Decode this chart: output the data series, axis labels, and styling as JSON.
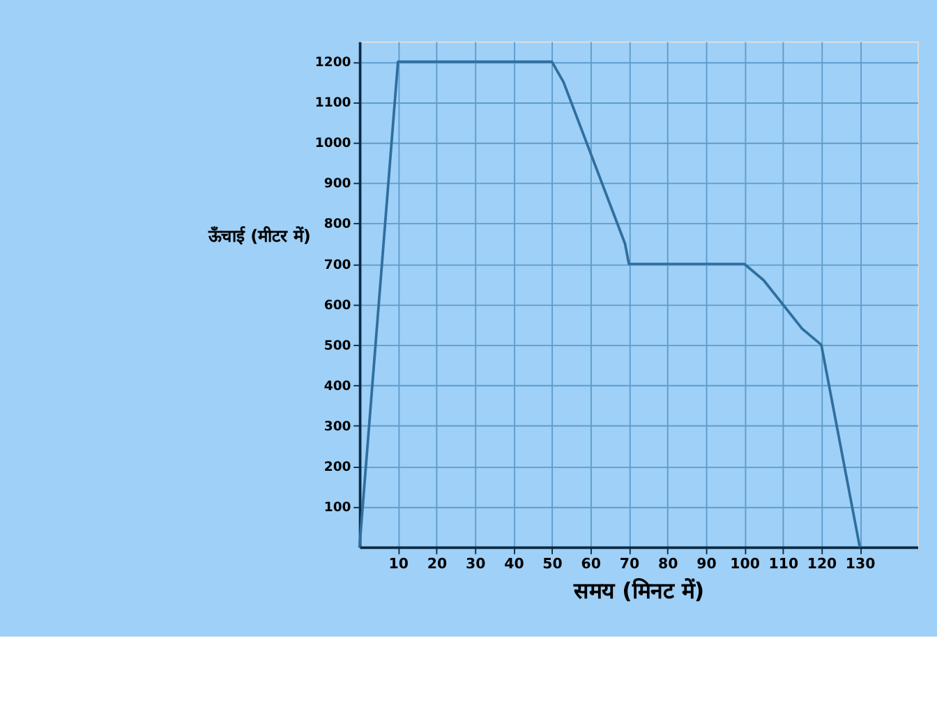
{
  "chart_data": {
    "type": "line",
    "xlabel": "समय (मिनट में)",
    "ylabel": "ऊँचाई (मीटर में)",
    "x": [
      0,
      10,
      50,
      53,
      69,
      70,
      100,
      105,
      115,
      120,
      130
    ],
    "series": [
      {
        "color": "#2f6f9f",
        "values": [
          0,
          1200,
          1200,
          1150,
          750,
          700,
          700,
          660,
          540,
          500,
          0
        ]
      }
    ],
    "xlim": [
      0,
      145
    ],
    "ylim": [
      0,
      1250
    ],
    "xticks": [
      10,
      20,
      30,
      40,
      50,
      60,
      70,
      80,
      90,
      100,
      110,
      120,
      130
    ],
    "yticks": [
      100,
      200,
      300,
      400,
      500,
      600,
      700,
      800,
      900,
      1000,
      1100,
      1200
    ],
    "grid": true,
    "marker": "none",
    "line_style": "solid"
  }
}
